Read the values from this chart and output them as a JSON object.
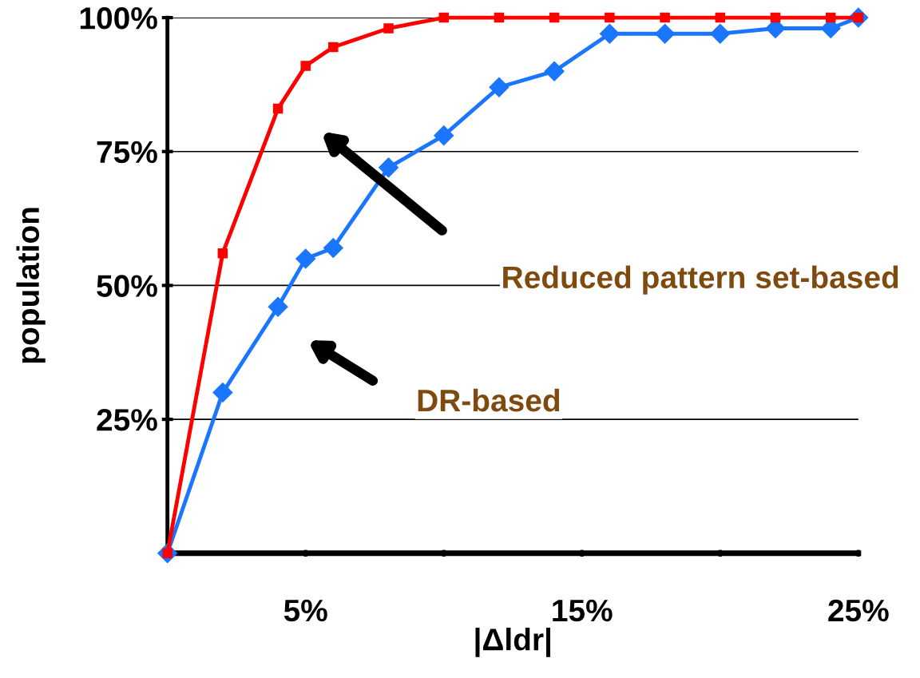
{
  "chart_data": {
    "type": "line",
    "xlabel": "|Δldr|",
    "ylabel": "population",
    "xlim": [
      0,
      25
    ],
    "ylim": [
      0,
      100
    ],
    "xticks": [
      {
        "value": 0,
        "label": null
      },
      {
        "value": 5,
        "label": "5%"
      },
      {
        "value": 10,
        "label": null
      },
      {
        "value": 15,
        "label": "15%"
      },
      {
        "value": 20,
        "label": null
      },
      {
        "value": 25,
        "label": "25%"
      }
    ],
    "yticks": [
      {
        "value": 0,
        "label": null
      },
      {
        "value": 25,
        "label": "25%"
      },
      {
        "value": 50,
        "label": "50%"
      },
      {
        "value": 75,
        "label": "75%"
      },
      {
        "value": 100,
        "label": "100%"
      }
    ],
    "grid": "y",
    "legend": false,
    "annotations": [
      "Reduced pattern set-based",
      "DR-based"
    ],
    "series": [
      {
        "color": "#ff0000",
        "marker": "square",
        "x": [
          0,
          2,
          4,
          5,
          6,
          8,
          10,
          12,
          14,
          16,
          18,
          20,
          22,
          24,
          25
        ],
        "values": [
          0,
          56,
          83,
          91,
          94.5,
          98,
          100,
          100,
          100,
          100,
          100,
          100,
          100,
          100,
          100
        ]
      },
      {
        "color": "#1a75ff",
        "marker": "diamond",
        "x": [
          0,
          2,
          4,
          5,
          6,
          8,
          10,
          12,
          14,
          16,
          18,
          20,
          22,
          24,
          25
        ],
        "values": [
          0,
          30,
          46,
          55,
          57,
          72,
          78,
          87,
          90,
          97,
          97,
          97,
          98,
          98,
          100
        ]
      }
    ]
  }
}
